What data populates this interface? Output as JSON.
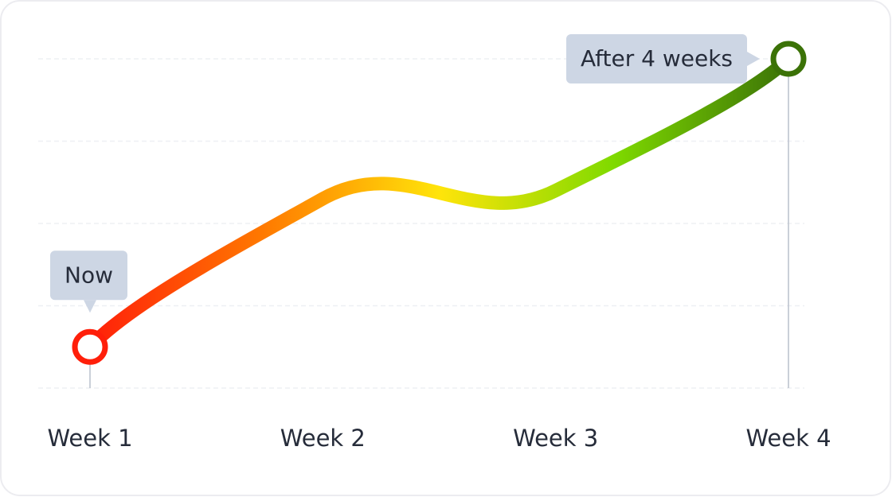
{
  "chart_data": {
    "type": "line",
    "categories": [
      "Week 1",
      "Week 2",
      "Week 3",
      "Week 4"
    ],
    "values": [
      0.5,
      2.3,
      2.4,
      4.0
    ],
    "ylim": [
      0,
      4
    ],
    "yticks": [
      0,
      1,
      2,
      3,
      4
    ],
    "grid": true,
    "gradient": [
      "#ff1f0a",
      "#ff7a00",
      "#ffe40a",
      "#7fda00",
      "#3b7207"
    ],
    "annotations": [
      {
        "text": "Now",
        "point": 0
      },
      {
        "text": "After 4 weeks",
        "point": 3
      }
    ]
  }
}
